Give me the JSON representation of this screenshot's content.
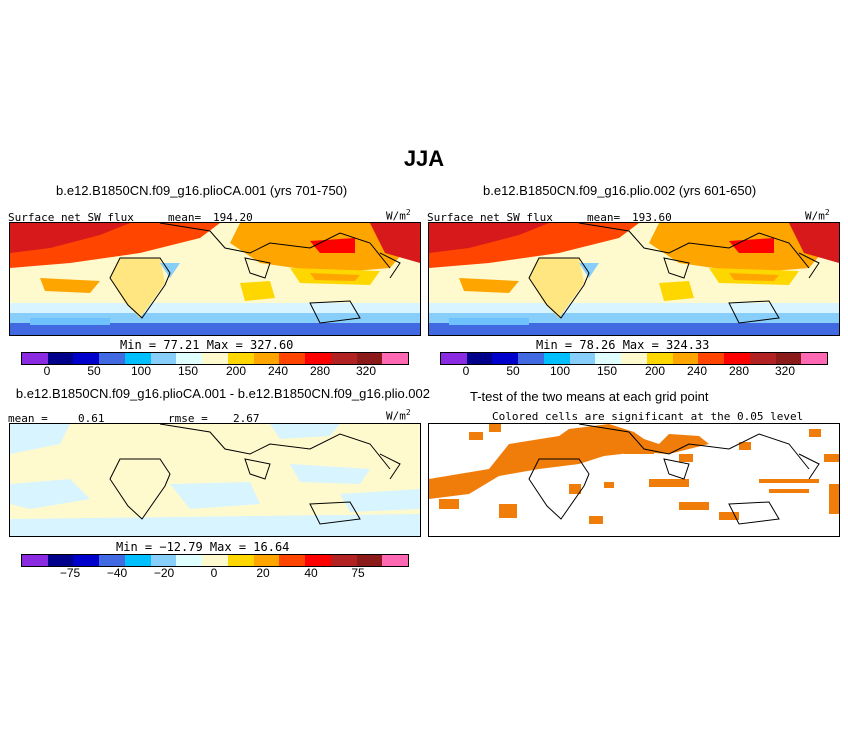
{
  "figure": {
    "title": "JJA",
    "units_label": "W/m",
    "units_sup": "2"
  },
  "panels": {
    "top_left": {
      "title": "b.e12.B1850CN.f09_g16.plioCA.001 (yrs 701-750)",
      "variable": "Surface net SW flux",
      "mean_label": "mean=",
      "mean_value": "194.20",
      "minmax": "Min =  77.21 Max = 327.60"
    },
    "top_right": {
      "title": "b.e12.B1850CN.f09_g16.plio.002 (yrs 601-650)",
      "variable": "Surface net SW flux",
      "mean_label": "mean=",
      "mean_value": "193.60",
      "minmax": "Min =  78.26 Max = 324.33"
    },
    "bottom_left": {
      "title": "b.e12.B1850CN.f09_g16.plioCA.001 - b.e12.B1850CN.f09_g16.plio.002",
      "mean_label": "mean =",
      "mean_value": "0.61",
      "rmse_label": "rmse =",
      "rmse_value": "2.67",
      "minmax": "Min = −12.79 Max =  16.64"
    },
    "bottom_right": {
      "title": "T-test of the two means at each grid point",
      "subtitle": "Colored cells are significant at the 0.05 level"
    }
  },
  "colorbars": {
    "colors": [
      "#8a2be2",
      "#00008b",
      "#0000cd",
      "#4169e1",
      "#00bfff",
      "#87cefa",
      "#e0ffff",
      "#fffacd",
      "#ffd700",
      "#ffa500",
      "#ff4500",
      "#ff0000",
      "#b22222",
      "#8b1a1a",
      "#ff69b4"
    ],
    "mean_ticks": [
      "0",
      "50",
      "100",
      "150",
      "200",
      "240",
      "280",
      "320"
    ],
    "diff_ticks": [
      "−75",
      "−40",
      "−20",
      "0",
      "20",
      "40",
      "75"
    ]
  },
  "colors": {
    "hot": "#d7191c",
    "orange": "#ff7f00",
    "yellow": "#ffe680",
    "lightyellow": "#fffacd",
    "lightblue": "#d8f4ff",
    "blue": "#6ec1ff",
    "sig": "#f07d0a"
  }
}
